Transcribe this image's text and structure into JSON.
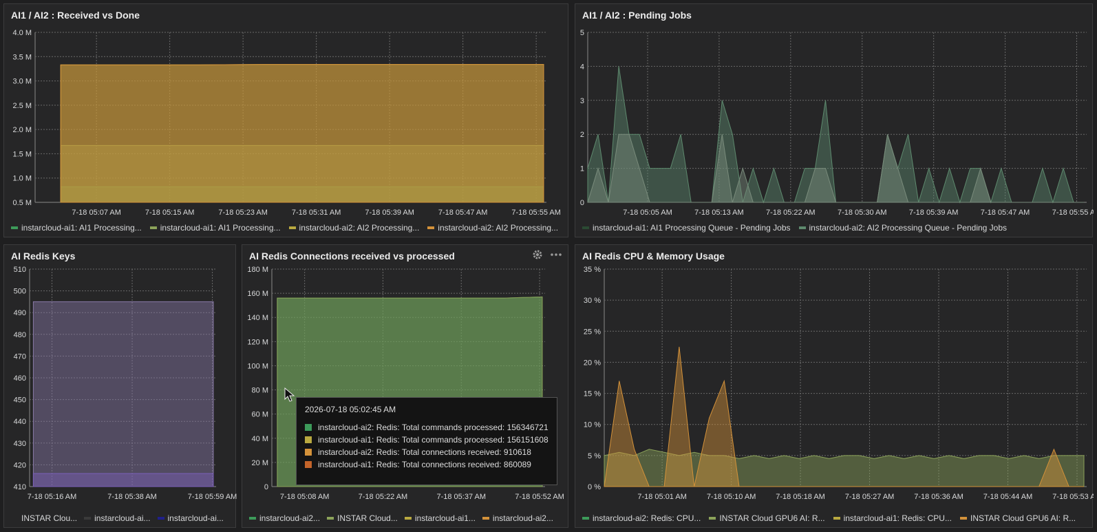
{
  "panels": {
    "p1": {
      "title": "AI1 / AI2 : Received vs Done",
      "legend": [
        {
          "label": "instarcloud-ai1: AI1 Processing...",
          "color": "#3d9b5a"
        },
        {
          "label": "instarcloud-ai1: AI1 Processing...",
          "color": "#8ca35a"
        },
        {
          "label": "instarcloud-ai2: AI2 Processing...",
          "color": "#b9a940"
        },
        {
          "label": "instarcloud-ai2: AI2 Processing...",
          "color": "#d4923a"
        }
      ]
    },
    "p2": {
      "title": "AI1 / AI2 : Pending Jobs",
      "legend": [
        {
          "label": "instarcloud-ai1: AI1 Processing Queue - Pending Jobs",
          "color": "#2b4a33"
        },
        {
          "label": "instarcloud-ai2: AI2 Processing Queue - Pending Jobs",
          "color": "#5e8a6e"
        }
      ]
    },
    "p3": {
      "title": "AI Redis Keys",
      "legend": [
        {
          "label": "INSTAR Clou...",
          "color": "#262627"
        },
        {
          "label": "instarcloud-ai...",
          "color": "#3a3a3a"
        },
        {
          "label": "instarcloud-ai...",
          "color": "#1f1f8a"
        }
      ]
    },
    "p4": {
      "title": "AI Redis Connections received vs processed",
      "legend": [
        {
          "label": "instarcloud-ai2...",
          "color": "#3d9b5a"
        },
        {
          "label": "INSTAR Cloud...",
          "color": "#8ca35a"
        },
        {
          "label": "instarcloud-ai1...",
          "color": "#b9a940"
        },
        {
          "label": "instarcloud-ai2...",
          "color": "#d4923a"
        }
      ],
      "tooltip": {
        "time": "2026-07-18 05:02:45 AM",
        "rows": [
          {
            "text": "instarcloud-ai2: Redis: Total commands processed: 156346721",
            "color": "#3d9b5a"
          },
          {
            "text": "instarcloud-ai1: Redis: Total commands processed: 156151608",
            "color": "#b9a940"
          },
          {
            "text": "instarcloud-ai2: Redis: Total connections received: 910618",
            "color": "#d4923a"
          },
          {
            "text": "instarcloud-ai1: Redis: Total connections received: 860089",
            "color": "#c4642a"
          }
        ]
      }
    },
    "p5": {
      "title": "AI Redis CPU & Memory Usage",
      "legend": [
        {
          "label": "instarcloud-ai2: Redis: CPU...",
          "color": "#3d9b5a"
        },
        {
          "label": "INSTAR Cloud GPU6 AI: R...",
          "color": "#8ca35a"
        },
        {
          "label": "instarcloud-ai1: Redis: CPU...",
          "color": "#b9a940"
        },
        {
          "label": "INSTAR Cloud GPU6 AI: R...",
          "color": "#d4923a"
        }
      ]
    }
  },
  "chart_data": [
    {
      "type": "area",
      "title": "AI1 / AI2 : Received vs Done",
      "x_ticks": [
        "7-18 05:07 AM",
        "7-18 05:15 AM",
        "7-18 05:23 AM",
        "7-18 05:31 AM",
        "7-18 05:39 AM",
        "7-18 05:47 AM",
        "7-18 05:55 AM"
      ],
      "y_ticks": [
        "0.5 M",
        "1.0 M",
        "1.5 M",
        "2.0 M",
        "2.5 M",
        "3.0 M",
        "3.5 M",
        "4.0 M"
      ],
      "ylim": [
        0.5,
        4.0
      ],
      "series": [
        {
          "values": [
            0.82,
            0.82,
            0.82,
            0.82,
            0.82,
            0.82,
            0.82,
            0.82
          ],
          "color": "#3d9b5a"
        },
        {
          "values": [
            1.67,
            1.67,
            1.67,
            1.67,
            1.67,
            1.67,
            1.67,
            1.67
          ],
          "color": "#8ca35a"
        },
        {
          "values": [
            3.33,
            3.33,
            3.33,
            3.34,
            3.34,
            3.34,
            3.34,
            3.34
          ],
          "color": "#b9a940"
        },
        {
          "values": [
            3.33,
            3.33,
            3.33,
            3.34,
            3.34,
            3.34,
            3.34,
            3.34
          ],
          "color": "#d4923a"
        }
      ]
    },
    {
      "type": "area",
      "title": "AI1 / AI2 : Pending Jobs",
      "x_ticks": [
        "7-18 05:05 AM",
        "7-18 05:13 AM",
        "7-18 05:22 AM",
        "7-18 05:30 AM",
        "7-18 05:39 AM",
        "7-18 05:47 AM",
        "7-18 05:55 AM"
      ],
      "y_ticks": [
        "0",
        "1",
        "2",
        "3",
        "4",
        "5"
      ],
      "ylim": [
        0,
        5
      ],
      "series": [
        {
          "values": [
            1,
            2,
            0,
            4,
            2,
            2,
            1,
            1,
            1,
            2,
            0,
            0,
            0,
            3,
            2,
            0,
            1,
            0,
            1,
            0,
            0,
            1,
            1,
            3,
            0,
            0,
            0,
            0,
            0,
            2,
            1,
            2,
            0,
            1,
            0,
            1,
            0,
            1,
            1,
            0,
            1,
            0,
            0,
            0,
            1,
            0,
            1,
            0,
            0
          ],
          "color": "#5e8a6e"
        },
        {
          "values": [
            0,
            1,
            0,
            2,
            2,
            1,
            0,
            0,
            0,
            0,
            0,
            0,
            0,
            2,
            0,
            1,
            0,
            0,
            0,
            0,
            0,
            0,
            1,
            1,
            0,
            0,
            0,
            0,
            0,
            2,
            1,
            0,
            0,
            0,
            0,
            0,
            0,
            0,
            1,
            0,
            0,
            0,
            0,
            0,
            0,
            0,
            0,
            0,
            0
          ],
          "color": "#7a8c7c"
        }
      ]
    },
    {
      "type": "area",
      "title": "AI Redis Keys",
      "x_ticks": [
        "7-18 05:16 AM",
        "7-18 05:38 AM",
        "7-18 05:59 AM"
      ],
      "y_ticks": [
        "410",
        "420",
        "430",
        "440",
        "450",
        "460",
        "470",
        "480",
        "490",
        "500",
        "510"
      ],
      "ylim": [
        410,
        510
      ],
      "series": [
        {
          "values": [
            495,
            495,
            495,
            495,
            495,
            495,
            495,
            495
          ],
          "color": "#8a7aa8"
        },
        {
          "values": [
            416,
            416,
            416,
            416,
            416,
            416,
            416,
            416
          ],
          "color": "#7a5fb8"
        }
      ]
    },
    {
      "type": "area",
      "title": "AI Redis Connections received vs processed",
      "x_ticks": [
        "7-18 05:08 AM",
        "7-18 05:22 AM",
        "7-18 05:37 AM",
        "7-18 05:52 AM"
      ],
      "y_ticks": [
        "0",
        "20 M",
        "40 M",
        "60 M",
        "80 M",
        "100 M",
        "120 M",
        "140 M",
        "160 M",
        "180 M"
      ],
      "ylim": [
        0,
        180
      ],
      "series": [
        {
          "values": [
            156,
            156,
            156,
            156,
            156,
            156,
            156,
            157
          ],
          "color": "#3d9b5a"
        },
        {
          "values": [
            156,
            156,
            156,
            156,
            156,
            156,
            156,
            157
          ],
          "color": "#8ca35a"
        }
      ]
    },
    {
      "type": "area",
      "title": "AI Redis CPU & Memory Usage",
      "x_ticks": [
        "7-18 05:01 AM",
        "7-18 05:10 AM",
        "7-18 05:18 AM",
        "7-18 05:27 AM",
        "7-18 05:36 AM",
        "7-18 05:44 AM",
        "7-18 05:53 AM"
      ],
      "y_ticks": [
        "0 %",
        "5 %",
        "10 %",
        "15 %",
        "20 %",
        "25 %",
        "30 %",
        "35 %"
      ],
      "ylim": [
        0,
        35
      ],
      "series": [
        {
          "values": [
            5,
            5.5,
            5,
            6,
            5.5,
            5,
            5.5,
            5,
            5,
            4.5,
            5,
            4.5,
            5,
            4.5,
            5,
            4.5,
            5,
            5,
            4.5,
            5,
            4.5,
            5,
            4.5,
            5,
            4.5,
            5,
            5,
            4.5,
            5,
            4.5,
            5,
            5,
            5
          ],
          "color": "#8ca35a"
        },
        {
          "values": [
            0,
            17,
            6,
            0,
            0,
            22.5,
            0,
            11,
            17,
            0,
            0,
            0,
            0,
            0,
            0,
            0,
            0,
            0,
            0,
            0,
            0,
            0,
            0,
            0,
            0,
            0,
            0,
            0,
            0,
            0,
            6,
            0,
            0
          ],
          "color": "#d4923a"
        }
      ]
    }
  ]
}
